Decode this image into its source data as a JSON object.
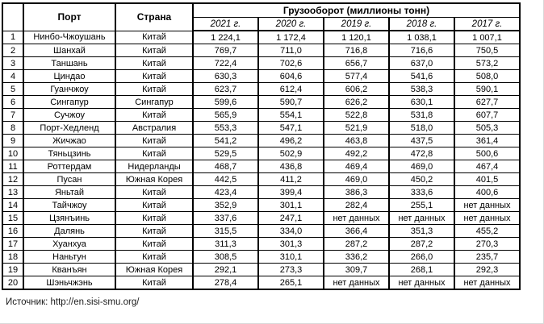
{
  "table": {
    "headers": {
      "rank": "",
      "port": "Порт",
      "country": "Страна",
      "cargo_group": "Грузооборот (миллионы тонн)",
      "years": [
        "2021 г.",
        "2020 г.",
        "2019 г.",
        "2018 г.",
        "2017 г."
      ]
    },
    "no_data_label": "нет данных",
    "rows": [
      {
        "n": "1",
        "port": "Нинбо-Чжоушань",
        "country": "Китай",
        "values": [
          "1 224,1",
          "1 172,4",
          "1 120,1",
          "1 038,1",
          "1 007,1"
        ]
      },
      {
        "n": "2",
        "port": "Шанхай",
        "country": "Китай",
        "values": [
          "769,7",
          "711,0",
          "716,8",
          "716,6",
          "750,5"
        ]
      },
      {
        "n": "3",
        "port": "Таншань",
        "country": "Китай",
        "values": [
          "722,4",
          "702,6",
          "656,7",
          "637,0",
          "573,2"
        ]
      },
      {
        "n": "4",
        "port": "Циндао",
        "country": "Китай",
        "values": [
          "630,3",
          "604,6",
          "577,4",
          "541,6",
          "508,0"
        ]
      },
      {
        "n": "5",
        "port": "Гуанчжоу",
        "country": "Китай",
        "values": [
          "623,7",
          "612,4",
          "606,2",
          "538,3",
          "590,1"
        ]
      },
      {
        "n": "6",
        "port": "Сингапур",
        "country": "Сингапур",
        "values": [
          "599,6",
          "590,7",
          "626,2",
          "630,1",
          "627,7"
        ]
      },
      {
        "n": "7",
        "port": "Сучжоу",
        "country": "Китай",
        "values": [
          "565,9",
          "554,1",
          "522,8",
          "531,8",
          "607,7"
        ]
      },
      {
        "n": "8",
        "port": "Порт-Хедленд",
        "country": "Австралия",
        "values": [
          "553,3",
          "547,1",
          "521,9",
          "518,0",
          "505,3"
        ]
      },
      {
        "n": "9",
        "port": "Жичжао",
        "country": "Китай",
        "values": [
          "541,2",
          "496,2",
          "463,8",
          "437,5",
          "361,4"
        ]
      },
      {
        "n": "10",
        "port": "Тяньцзинь",
        "country": "Китай",
        "values": [
          "529,5",
          "502,9",
          "492,2",
          "472,8",
          "500,6"
        ]
      },
      {
        "n": "11",
        "port": "Роттердам",
        "country": "Нидерланды",
        "values": [
          "468,7",
          "436,8",
          "469,4",
          "469,0",
          "467,4"
        ]
      },
      {
        "n": "12",
        "port": "Пусан",
        "country": "Южная Корея",
        "values": [
          "442,5",
          "411,2",
          "469,0",
          "450,2",
          "401,5"
        ]
      },
      {
        "n": "13",
        "port": "Яньтай",
        "country": "Китай",
        "values": [
          "423,4",
          "399,4",
          "386,3",
          "333,6",
          "400,6"
        ]
      },
      {
        "n": "14",
        "port": "Тайчжоу",
        "country": "Китай",
        "values": [
          "352,9",
          "301,1",
          "282,4",
          "255,1",
          "нет данных"
        ]
      },
      {
        "n": "15",
        "port": "Цзянъинь",
        "country": "Китай",
        "values": [
          "337,6",
          "247,1",
          "нет данных",
          "нет данных",
          "нет данных"
        ]
      },
      {
        "n": "16",
        "port": "Далянь",
        "country": "Китай",
        "values": [
          "315,5",
          "334,0",
          "366,4",
          "351,3",
          "455,2"
        ]
      },
      {
        "n": "17",
        "port": "Хуанхуа",
        "country": "Китай",
        "values": [
          "311,3",
          "301,3",
          "287,2",
          "287,2",
          "270,3"
        ]
      },
      {
        "n": "18",
        "port": "Наньтун",
        "country": "Китай",
        "values": [
          "308,5",
          "310,1",
          "336,2",
          "266,0",
          "235,7"
        ]
      },
      {
        "n": "19",
        "port": "Кванъян",
        "country": "Южная Корея",
        "values": [
          "292,1",
          "273,3",
          "309,7",
          "268,1",
          "292,3"
        ]
      },
      {
        "n": "20",
        "port": "Шэньчжэнь",
        "country": "Китай",
        "values": [
          "278,4",
          "265,1",
          "нет данных",
          "нет данных",
          "нет данных"
        ]
      }
    ]
  },
  "source": "Источник: http://en.sisi-smu.org/",
  "colors": {
    "border": "#000000",
    "background": "#ffffff",
    "text": "#000000"
  }
}
